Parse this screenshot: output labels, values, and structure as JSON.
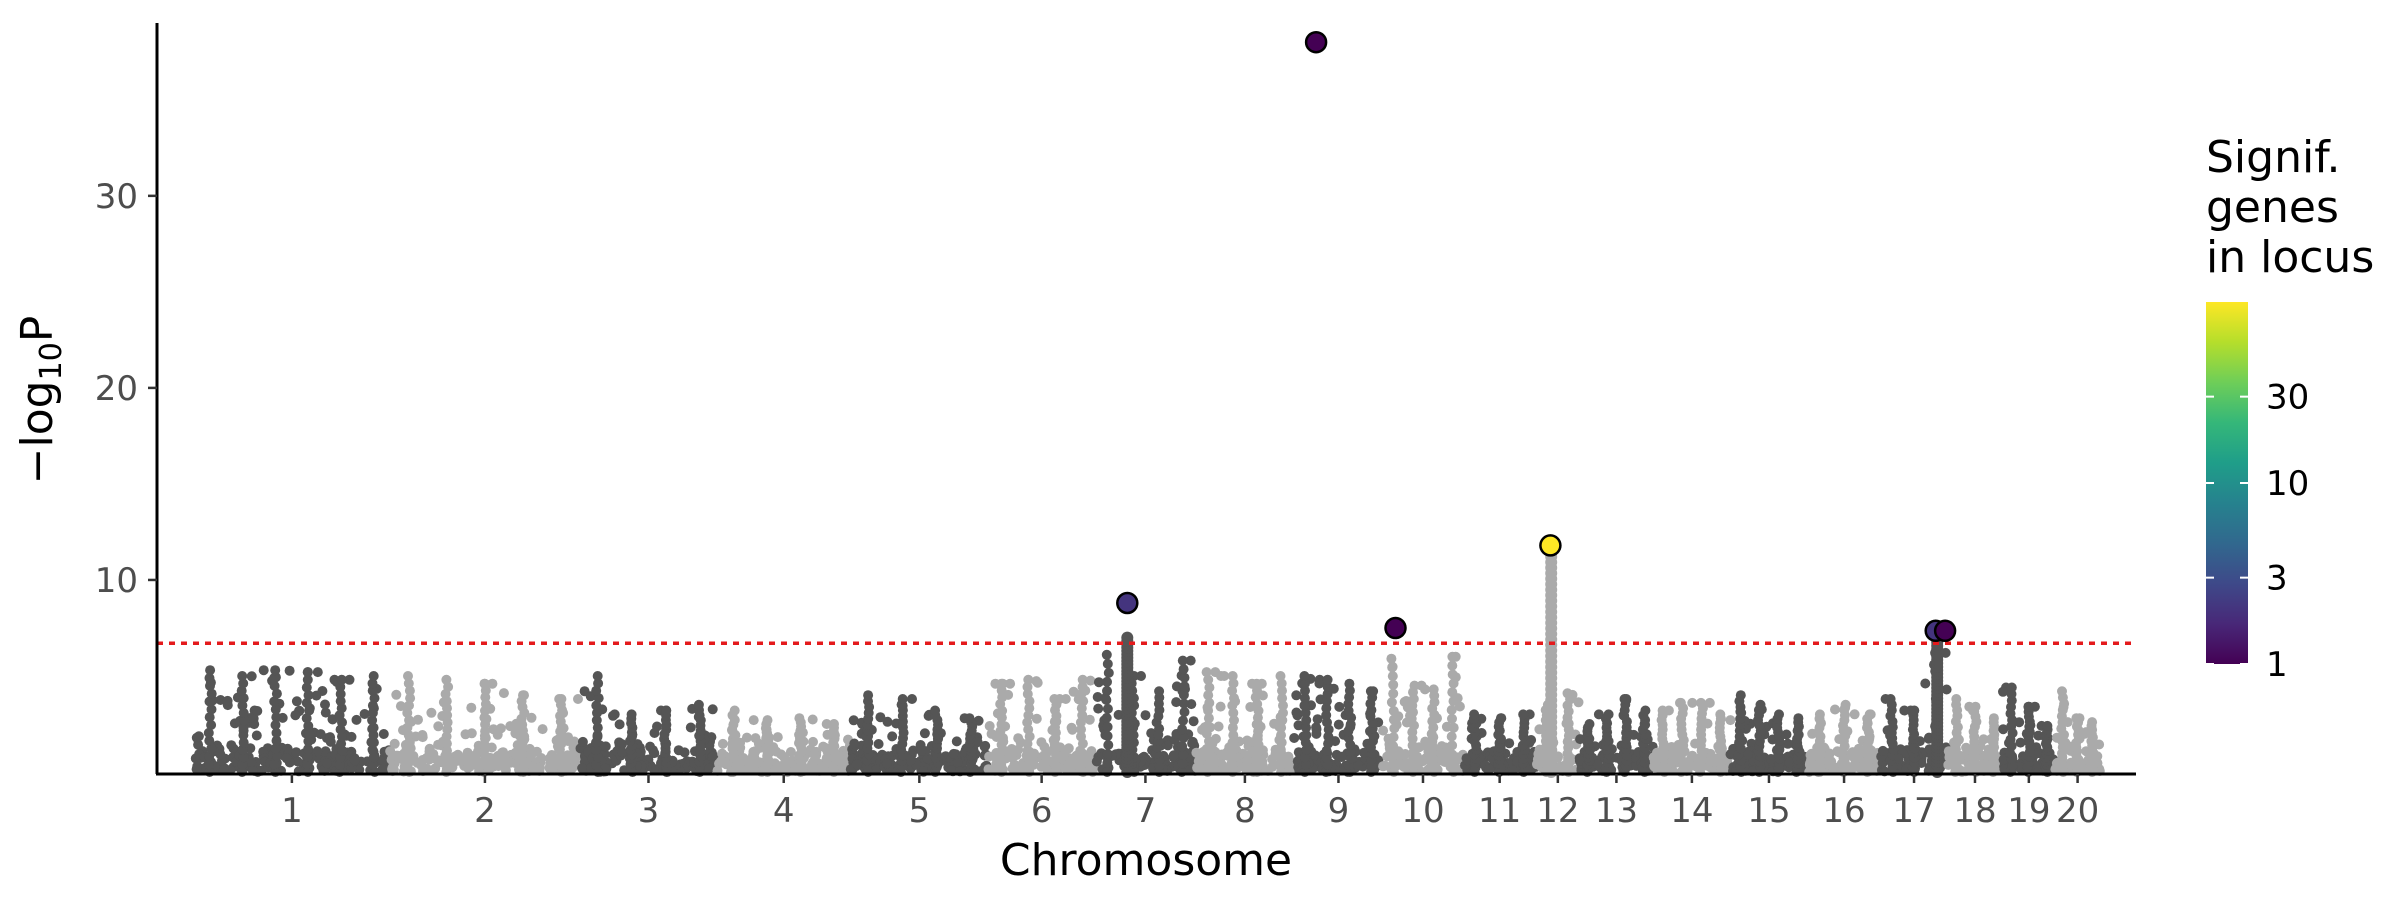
{
  "chart_data": {
    "type": "scatter",
    "subtype": "manhattan",
    "xlabel": "Chromosome",
    "ylabel": {
      "prefix": "−log",
      "sub": "10",
      "suffix": "P"
    },
    "ylim": [
      0,
      39
    ],
    "yticks": [
      10,
      20,
      30
    ],
    "threshold": {
      "value": 6.7,
      "color": "#e41a1c",
      "style": "dotted"
    },
    "chromosome_colors": [
      "#555555",
      "#aaaaaa"
    ],
    "chromosomes": [
      {
        "label": "1",
        "start": 0,
        "end": 249
      },
      {
        "label": "2",
        "start": 249,
        "end": 491
      },
      {
        "label": "3",
        "start": 491,
        "end": 665
      },
      {
        "label": "4",
        "start": 665,
        "end": 835
      },
      {
        "label": "5",
        "start": 835,
        "end": 1010
      },
      {
        "label": "6",
        "start": 1010,
        "end": 1146
      },
      {
        "label": "7",
        "start": 1146,
        "end": 1274
      },
      {
        "label": "8",
        "start": 1274,
        "end": 1399
      },
      {
        "label": "9",
        "start": 1399,
        "end": 1512
      },
      {
        "label": "10",
        "start": 1512,
        "end": 1614
      },
      {
        "label": "11",
        "start": 1614,
        "end": 1707
      },
      {
        "label": "12",
        "start": 1707,
        "end": 1762
      },
      {
        "label": "13",
        "start": 1762,
        "end": 1856
      },
      {
        "label": "14",
        "start": 1856,
        "end": 1954
      },
      {
        "label": "15",
        "start": 1954,
        "end": 2052
      },
      {
        "label": "16",
        "start": 2052,
        "end": 2145
      },
      {
        "label": "17",
        "start": 2145,
        "end": 2230
      },
      {
        "label": "18",
        "start": 2230,
        "end": 2300
      },
      {
        "label": "19",
        "start": 2300,
        "end": 2367
      },
      {
        "label": "20",
        "start": 2367,
        "end": 2424
      }
    ],
    "chromosome_peaks": [
      [
        5.3,
        5.0,
        5.3,
        5.2,
        4.8,
        5.0
      ],
      [
        5.0,
        4.8,
        4.6,
        4.0,
        3.8
      ],
      [
        5.0,
        3.0,
        3.2,
        3.5
      ],
      [
        3.2,
        2.7,
        2.8,
        2.5
      ],
      [
        4.0,
        3.8,
        3.2,
        2.8
      ],
      [
        4.6,
        4.8,
        3.8,
        4.8
      ],
      [
        6.1,
        5.0,
        4.2,
        5.8
      ],
      [
        5.2,
        5.0,
        4.6,
        5.0
      ],
      [
        5.0,
        4.8,
        4.6,
        4.2
      ],
      [
        5.9,
        4.5,
        4.3,
        6.0
      ],
      [
        3.0,
        2.8,
        3.0
      ],
      [
        3.5,
        4.1
      ],
      [
        2.5,
        3.0,
        3.8,
        3.2
      ],
      [
        3.2,
        3.6,
        3.6,
        3.0
      ],
      [
        4.0,
        3.5,
        3.0,
        2.8
      ],
      [
        3.0,
        3.5,
        3.0
      ],
      [
        3.8,
        3.2,
        6.2
      ],
      [
        3.8,
        3.4,
        2.8
      ],
      [
        4.4,
        3.4,
        2.4
      ],
      [
        4.2,
        2.8,
        2.6
      ]
    ],
    "towers": [
      {
        "chrom": "7",
        "x": 1187,
        "top": 7.0
      },
      {
        "chrom": "12",
        "x": 1726,
        "top": 11.5
      },
      {
        "chrom": "17",
        "x": 2217,
        "top": 7.3
      }
    ],
    "lead_snps": [
      {
        "chrom": "7",
        "x": 1187,
        "y": 8.8,
        "n_genes": 2
      },
      {
        "chrom": "9",
        "x": 1427,
        "y": 38.0,
        "n_genes": 1
      },
      {
        "chrom": "10",
        "x": 1528,
        "y": 7.5,
        "n_genes": 1
      },
      {
        "chrom": "12",
        "x": 1725,
        "y": 11.8,
        "n_genes": 100
      },
      {
        "chrom": "17",
        "x": 2215,
        "y": 7.35,
        "n_genes": 2
      },
      {
        "chrom": "17",
        "x": 2227,
        "y": 7.35,
        "n_genes": 1
      }
    ],
    "legend": {
      "title_lines": [
        "Signif.",
        "genes",
        "in locus"
      ],
      "placement": "right",
      "scale": "log",
      "limits": [
        1,
        100
      ],
      "breaks": [
        1,
        3,
        10,
        30
      ],
      "break_labels": [
        "1",
        "3",
        "10",
        "30"
      ],
      "colormap": "viridis",
      "viridis_stops": [
        "#440154",
        "#482878",
        "#3e4989",
        "#31688e",
        "#26828e",
        "#1f9e89",
        "#35b779",
        "#6ece58",
        "#b5de2b",
        "#fde725"
      ]
    },
    "grid": false
  }
}
